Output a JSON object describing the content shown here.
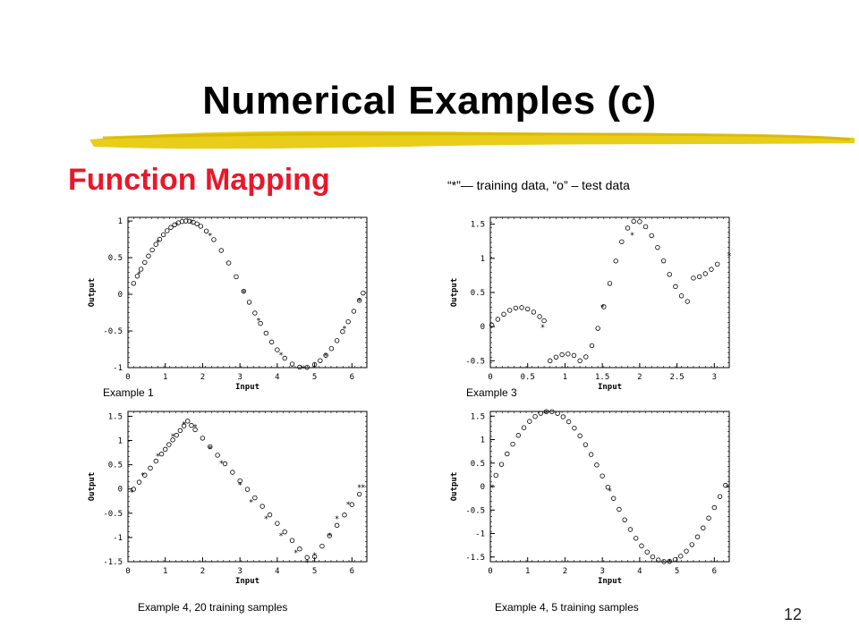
{
  "slide": {
    "title": "Numerical Examples (c)",
    "subtitle": "Function Mapping",
    "legend_note": "“*”— training data, “o” – test data",
    "page_number": "12",
    "accent_color": "#e8182a",
    "underline_color": "#e6c800"
  },
  "chart_data": [
    {
      "type": "scatter",
      "caption": "Example 1",
      "xlabel": "Input",
      "ylabel": "Output",
      "xlim": [
        0,
        6.4
      ],
      "ylim": [
        -1,
        1.05
      ],
      "xticks": [
        0,
        1,
        2,
        3,
        4,
        5,
        6
      ],
      "xtick_labels": [
        "0",
        "1",
        "2",
        "3",
        "4",
        "5",
        "6"
      ],
      "yticks": [
        -1,
        -0.5,
        0,
        0.5,
        1
      ],
      "ytick_labels": [
        "-1",
        "-0.5",
        "0",
        "0.5",
        "1"
      ],
      "function": "sin(x)",
      "test_x": [
        0.15,
        0.25,
        0.35,
        0.45,
        0.55,
        0.65,
        0.75,
        0.85,
        0.95,
        1.05,
        1.15,
        1.25,
        1.35,
        1.45,
        1.55,
        1.65,
        1.75,
        1.85,
        1.95,
        2.1,
        2.3,
        2.5,
        2.7,
        2.9,
        3.1,
        3.25,
        3.4,
        3.55,
        3.7,
        3.85,
        4.0,
        4.2,
        4.4,
        4.6,
        4.8,
        5.0,
        5.15,
        5.3,
        5.45,
        5.6,
        5.75,
        5.9,
        6.05,
        6.2,
        6.3
      ],
      "train_x": [
        0.3,
        0.8,
        1.3,
        1.7,
        2.2,
        3.1,
        3.5,
        4.1,
        4.7,
        5.3,
        5.8,
        6.2
      ],
      "train_y": [
        0.29,
        0.72,
        0.96,
        0.99,
        0.81,
        0.04,
        -0.35,
        -0.82,
        -1.0,
        -0.83,
        -0.46,
        -0.08
      ]
    },
    {
      "type": "scatter",
      "caption": "Example 3",
      "xlabel": "Input",
      "ylabel": "Output",
      "xlim": [
        0,
        3.2
      ],
      "ylim": [
        -0.6,
        1.6
      ],
      "xticks": [
        0,
        0.5,
        1,
        1.5,
        2,
        2.5,
        3
      ],
      "xtick_labels": [
        "0",
        "0.5",
        "1",
        "1.5",
        "2",
        "2.5",
        "3"
      ],
      "yticks": [
        -0.5,
        0,
        0.5,
        1,
        1.5
      ],
      "ytick_labels": [
        "-0.5",
        "0",
        "0.5",
        "1",
        "1.5"
      ],
      "function": "piecewise",
      "test_x": [
        0.02,
        0.1,
        0.18,
        0.26,
        0.34,
        0.42,
        0.5,
        0.58,
        0.66,
        0.72,
        0.8,
        0.88,
        0.96,
        1.04,
        1.12,
        1.2,
        1.28,
        1.36,
        1.44,
        1.52,
        1.6,
        1.68,
        1.76,
        1.84,
        1.92,
        2.0,
        2.08,
        2.16,
        2.24,
        2.32,
        2.4,
        2.48,
        2.56,
        2.64,
        2.72,
        2.8,
        2.88,
        2.96,
        3.04
      ],
      "train_x": [
        0.7,
        1.5,
        1.9,
        3.2
      ],
      "train_y": [
        0.0,
        0.3,
        1.35,
        1.05
      ]
    },
    {
      "type": "scatter",
      "caption": "Example 4,  20 training samples",
      "xlabel": "Input",
      "ylabel": "Output",
      "xlim": [
        0,
        6.4
      ],
      "ylim": [
        -1.5,
        1.6
      ],
      "xticks": [
        0,
        1,
        2,
        3,
        4,
        5,
        6
      ],
      "xtick_labels": [
        "0",
        "1",
        "2",
        "3",
        "4",
        "5",
        "6"
      ],
      "yticks": [
        -1.5,
        -1,
        -0.5,
        0,
        0.5,
        1,
        1.5
      ],
      "ytick_labels": [
        "-1.5",
        "-1",
        "-0.5",
        "0",
        "0.5",
        "1",
        "1.5"
      ],
      "function": "triangle",
      "test_x": [
        0.15,
        0.3,
        0.45,
        0.6,
        0.75,
        0.9,
        1.0,
        1.1,
        1.2,
        1.3,
        1.4,
        1.5,
        1.6,
        1.7,
        1.8,
        2.0,
        2.2,
        2.4,
        2.6,
        2.8,
        3.0,
        3.2,
        3.4,
        3.6,
        3.8,
        4.0,
        4.2,
        4.4,
        4.6,
        4.8,
        5.0,
        5.2,
        5.4,
        5.6,
        5.8,
        6.0,
        6.2
      ],
      "train_x": [
        0.1,
        0.4,
        0.8,
        1.2,
        1.5,
        1.8,
        2.2,
        2.5,
        3.0,
        3.3,
        3.7,
        4.1,
        4.5,
        4.8,
        5.0,
        5.4,
        5.6,
        5.9,
        6.2,
        6.3
      ],
      "train_y": [
        -0.05,
        0.3,
        0.7,
        1.1,
        1.35,
        1.3,
        0.85,
        0.55,
        0.1,
        -0.25,
        -0.6,
        -0.95,
        -1.3,
        -1.5,
        -1.35,
        -0.95,
        -0.6,
        -0.3,
        0.05,
        0.05
      ]
    },
    {
      "type": "scatter",
      "caption": "Example 4,  5 training samples",
      "xlabel": "Input",
      "ylabel": "Output",
      "xlim": [
        0,
        6.4
      ],
      "ylim": [
        -1.6,
        1.6
      ],
      "xticks": [
        0,
        1,
        2,
        3,
        4,
        5,
        6
      ],
      "xtick_labels": [
        "0",
        "1",
        "2",
        "3",
        "4",
        "5",
        "6"
      ],
      "yticks": [
        -1.5,
        -1,
        -0.5,
        0,
        0.5,
        1,
        1.5
      ],
      "ytick_labels": [
        "-1.5",
        "-1",
        "-0.5",
        "0",
        "0.5",
        "1",
        "1.5"
      ],
      "function": "1.6*sin(x)",
      "test_x": [
        0.15,
        0.3,
        0.45,
        0.6,
        0.75,
        0.9,
        1.05,
        1.2,
        1.35,
        1.5,
        1.65,
        1.8,
        1.95,
        2.1,
        2.25,
        2.4,
        2.55,
        2.7,
        2.85,
        3.0,
        3.15,
        3.3,
        3.45,
        3.6,
        3.75,
        3.9,
        4.05,
        4.2,
        4.35,
        4.5,
        4.65,
        4.8,
        4.95,
        5.1,
        5.25,
        5.4,
        5.55,
        5.7,
        5.85,
        6.0,
        6.15,
        6.3
      ],
      "train_x": [
        0.05,
        1.5,
        3.2,
        4.8,
        6.35
      ],
      "train_y": [
        0.0,
        1.58,
        -0.08,
        -1.58,
        0.0
      ]
    }
  ]
}
